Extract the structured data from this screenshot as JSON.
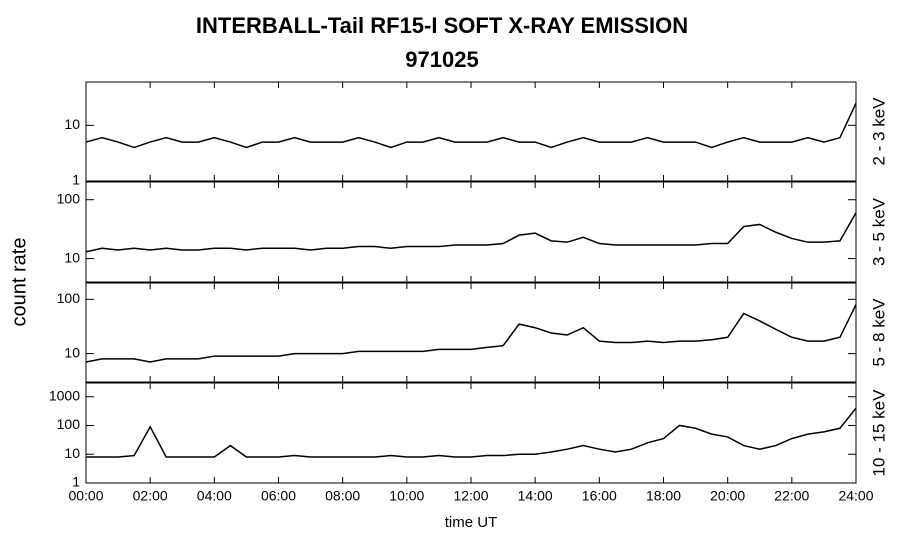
{
  "title": "INTERBALL-Tail RF15-I SOFT X-RAY EMISSION",
  "subtitle": "971025",
  "y_label": "count rate",
  "x_label": "time UT",
  "chart_data": [
    {
      "type": "line",
      "band_label": "2 - 3 keV",
      "log_y": true,
      "ylim": [
        1,
        60
      ],
      "yticks": [
        1,
        10
      ],
      "xlim": [
        0,
        24
      ],
      "xticks": [
        {
          "value": 0,
          "label": "00:00"
        },
        {
          "value": 2,
          "label": "02:00"
        },
        {
          "value": 4,
          "label": "04:00"
        },
        {
          "value": 6,
          "label": "06:00"
        },
        {
          "value": 8,
          "label": "08:00"
        },
        {
          "value": 10,
          "label": "10:00"
        },
        {
          "value": 12,
          "label": "12:00"
        },
        {
          "value": 14,
          "label": "14:00"
        },
        {
          "value": 16,
          "label": "16:00"
        },
        {
          "value": 18,
          "label": "18:00"
        },
        {
          "value": 20,
          "label": "20:00"
        },
        {
          "value": 22,
          "label": "22:00"
        },
        {
          "value": 24,
          "label": "24:00"
        }
      ],
      "x": [
        0,
        0.5,
        1,
        1.5,
        2,
        2.5,
        3,
        3.5,
        4,
        4.5,
        5,
        5.5,
        6,
        6.5,
        7,
        7.5,
        8,
        8.5,
        9,
        9.5,
        10,
        10.5,
        11,
        11.5,
        12,
        12.5,
        13,
        13.5,
        14,
        14.5,
        15,
        15.5,
        16,
        16.5,
        17,
        17.5,
        18,
        18.5,
        19,
        19.5,
        20,
        20.5,
        21,
        21.5,
        22,
        22.5,
        23,
        23.5,
        24
      ],
      "series": [
        {
          "color": "#000000",
          "values": [
            5,
            6,
            5,
            4,
            5,
            6,
            5,
            5,
            6,
            5,
            4,
            5,
            5,
            6,
            5,
            5,
            5,
            6,
            5,
            4,
            5,
            5,
            6,
            5,
            5,
            5,
            6,
            5,
            5,
            4,
            5,
            6,
            5,
            5,
            5,
            6,
            5,
            5,
            5,
            4,
            5,
            6,
            5,
            5,
            5,
            6,
            5,
            6,
            25
          ]
        }
      ]
    },
    {
      "type": "line",
      "band_label": "3 - 5 keV",
      "log_y": true,
      "ylim": [
        4,
        200
      ],
      "yticks": [
        10,
        100
      ],
      "xlim": [
        0,
        24
      ],
      "xticks": [
        {
          "value": 0,
          "label": "00:00"
        },
        {
          "value": 2,
          "label": "02:00"
        },
        {
          "value": 4,
          "label": "04:00"
        },
        {
          "value": 6,
          "label": "06:00"
        },
        {
          "value": 8,
          "label": "08:00"
        },
        {
          "value": 10,
          "label": "10:00"
        },
        {
          "value": 12,
          "label": "12:00"
        },
        {
          "value": 14,
          "label": "14:00"
        },
        {
          "value": 16,
          "label": "16:00"
        },
        {
          "value": 18,
          "label": "18:00"
        },
        {
          "value": 20,
          "label": "20:00"
        },
        {
          "value": 22,
          "label": "22:00"
        },
        {
          "value": 24,
          "label": "24:00"
        }
      ],
      "x": [
        0,
        0.5,
        1,
        1.5,
        2,
        2.5,
        3,
        3.5,
        4,
        4.5,
        5,
        5.5,
        6,
        6.5,
        7,
        7.5,
        8,
        8.5,
        9,
        9.5,
        10,
        10.5,
        11,
        11.5,
        12,
        12.5,
        13,
        13.5,
        14,
        14.5,
        15,
        15.5,
        16,
        16.5,
        17,
        17.5,
        18,
        18.5,
        19,
        19.5,
        20,
        20.5,
        21,
        21.5,
        22,
        22.5,
        23,
        23.5,
        24
      ],
      "series": [
        {
          "color": "#000000",
          "values": [
            13,
            15,
            14,
            15,
            14,
            15,
            14,
            14,
            15,
            15,
            14,
            15,
            15,
            15,
            14,
            15,
            15,
            16,
            16,
            15,
            16,
            16,
            16,
            17,
            17,
            17,
            18,
            25,
            27,
            20,
            19,
            23,
            18,
            17,
            17,
            17,
            17,
            17,
            17,
            18,
            18,
            35,
            38,
            28,
            22,
            19,
            19,
            20,
            60
          ]
        }
      ]
    },
    {
      "type": "line",
      "band_label": "5 - 8 keV",
      "log_y": true,
      "ylim": [
        3,
        200
      ],
      "yticks": [
        10,
        100
      ],
      "xlim": [
        0,
        24
      ],
      "xticks": [
        {
          "value": 0,
          "label": "00:00"
        },
        {
          "value": 2,
          "label": "02:00"
        },
        {
          "value": 4,
          "label": "04:00"
        },
        {
          "value": 6,
          "label": "06:00"
        },
        {
          "value": 8,
          "label": "08:00"
        },
        {
          "value": 10,
          "label": "10:00"
        },
        {
          "value": 12,
          "label": "12:00"
        },
        {
          "value": 14,
          "label": "14:00"
        },
        {
          "value": 16,
          "label": "16:00"
        },
        {
          "value": 18,
          "label": "18:00"
        },
        {
          "value": 20,
          "label": "20:00"
        },
        {
          "value": 22,
          "label": "22:00"
        },
        {
          "value": 24,
          "label": "24:00"
        }
      ],
      "x": [
        0,
        0.5,
        1,
        1.5,
        2,
        2.5,
        3,
        3.5,
        4,
        4.5,
        5,
        5.5,
        6,
        6.5,
        7,
        7.5,
        8,
        8.5,
        9,
        9.5,
        10,
        10.5,
        11,
        11.5,
        12,
        12.5,
        13,
        13.5,
        14,
        14.5,
        15,
        15.5,
        16,
        16.5,
        17,
        17.5,
        18,
        18.5,
        19,
        19.5,
        20,
        20.5,
        21,
        21.5,
        22,
        22.5,
        23,
        23.5,
        24
      ],
      "series": [
        {
          "color": "#000000",
          "values": [
            7,
            8,
            8,
            8,
            7,
            8,
            8,
            8,
            9,
            9,
            9,
            9,
            9,
            10,
            10,
            10,
            10,
            11,
            11,
            11,
            11,
            11,
            12,
            12,
            12,
            13,
            14,
            35,
            30,
            24,
            22,
            30,
            17,
            16,
            16,
            17,
            16,
            17,
            17,
            18,
            20,
            55,
            40,
            28,
            20,
            17,
            17,
            20,
            80
          ]
        }
      ]
    },
    {
      "type": "line",
      "band_label": "10 - 15 keV",
      "log_y": true,
      "ylim": [
        1,
        3000
      ],
      "yticks": [
        1,
        10,
        100,
        1000
      ],
      "xlim": [
        0,
        24
      ],
      "xticks": [
        {
          "value": 0,
          "label": "00:00"
        },
        {
          "value": 2,
          "label": "02:00"
        },
        {
          "value": 4,
          "label": "04:00"
        },
        {
          "value": 6,
          "label": "06:00"
        },
        {
          "value": 8,
          "label": "08:00"
        },
        {
          "value": 10,
          "label": "10:00"
        },
        {
          "value": 12,
          "label": "12:00"
        },
        {
          "value": 14,
          "label": "14:00"
        },
        {
          "value": 16,
          "label": "16:00"
        },
        {
          "value": 18,
          "label": "18:00"
        },
        {
          "value": 20,
          "label": "20:00"
        },
        {
          "value": 22,
          "label": "22:00"
        },
        {
          "value": 24,
          "label": "24:00"
        }
      ],
      "x": [
        0,
        0.5,
        1,
        1.5,
        2,
        2.5,
        3,
        3.5,
        4,
        4.5,
        5,
        5.5,
        6,
        6.5,
        7,
        7.5,
        8,
        8.5,
        9,
        9.5,
        10,
        10.5,
        11,
        11.5,
        12,
        12.5,
        13,
        13.5,
        14,
        14.5,
        15,
        15.5,
        16,
        16.5,
        17,
        17.5,
        18,
        18.5,
        19,
        19.5,
        20,
        20.5,
        21,
        21.5,
        22,
        22.5,
        23,
        23.5,
        24
      ],
      "series": [
        {
          "color": "#000000",
          "values": [
            8,
            8,
            8,
            9,
            90,
            8,
            8,
            8,
            8,
            20,
            8,
            8,
            8,
            9,
            8,
            8,
            8,
            8,
            8,
            9,
            8,
            8,
            9,
            8,
            8,
            9,
            9,
            10,
            10,
            12,
            15,
            20,
            15,
            12,
            15,
            25,
            35,
            100,
            80,
            50,
            40,
            20,
            15,
            20,
            35,
            50,
            60,
            80,
            400
          ]
        }
      ]
    }
  ]
}
